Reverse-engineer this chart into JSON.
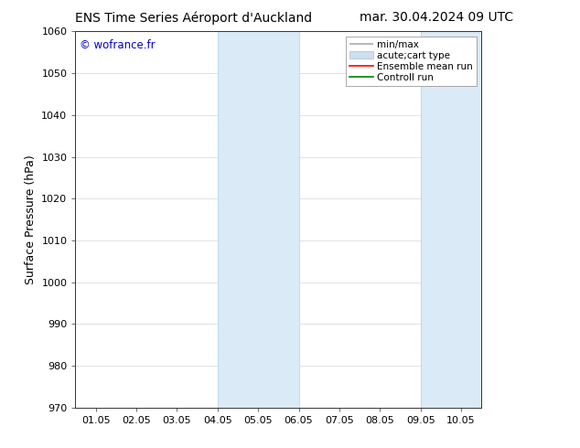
{
  "title_left": "ENS Time Series Aéroport d'Auckland",
  "title_right": "mar. 30.04.2024 09 UTC",
  "ylabel": "Surface Pressure (hPa)",
  "ylim": [
    970,
    1060
  ],
  "yticks": [
    970,
    980,
    990,
    1000,
    1010,
    1020,
    1030,
    1040,
    1050,
    1060
  ],
  "xtick_labels": [
    "01.05",
    "02.05",
    "03.05",
    "04.05",
    "05.05",
    "06.05",
    "07.05",
    "08.05",
    "09.05",
    "10.05"
  ],
  "xtick_positions": [
    0,
    1,
    2,
    3,
    4,
    5,
    6,
    7,
    8,
    9
  ],
  "xlim": [
    -0.5,
    9.5
  ],
  "shaded_bands": [
    {
      "x_start": 3.0,
      "x_end": 5.0,
      "color": "#daeaf7"
    },
    {
      "x_start": 8.0,
      "x_end": 9.5,
      "color": "#daeaf7"
    }
  ],
  "band_border_color": "#b8d4ea",
  "watermark_text": "© wofrance.fr",
  "watermark_color": "#0000cc",
  "legend_entries": [
    {
      "label": "min/max",
      "color": "#aaaaaa",
      "lw": 1.2,
      "style": "minmax"
    },
    {
      "label": "acute;cart type",
      "color": "#cce0f0",
      "lw": 8,
      "style": "band"
    },
    {
      "label": "Ensemble mean run",
      "color": "#ff0000",
      "lw": 1.2,
      "style": "line"
    },
    {
      "label": "Controll run",
      "color": "#008000",
      "lw": 1.2,
      "style": "line"
    }
  ],
  "bg_color": "#ffffff",
  "grid_color": "#cccccc",
  "title_fontsize": 10,
  "tick_fontsize": 8,
  "ylabel_fontsize": 9,
  "legend_fontsize": 7.5
}
